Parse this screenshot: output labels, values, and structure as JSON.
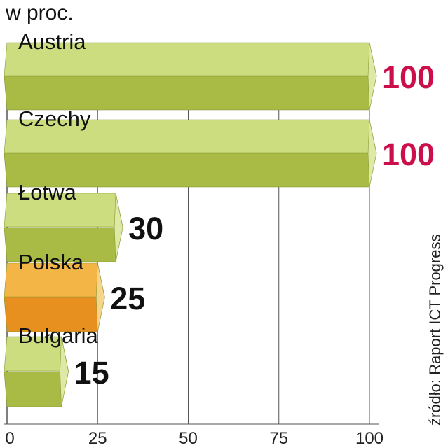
{
  "unit_label": "w proc.",
  "source": "źródło: Raport ICT Progress",
  "colors": {
    "bar_top": "#cbdd7f",
    "bar_front": "#a9bb45",
    "bar_end": "#dde9a4",
    "highlight_top": "#f4b547",
    "highlight_front": "#e8901f",
    "highlight_end": "#f8d489",
    "value_full": "#cc0f4a",
    "value_default": "#111111",
    "grid": "#555555"
  },
  "chart_data": {
    "type": "bar",
    "orientation": "horizontal",
    "categories": [
      "Austria",
      "Czechy",
      "Łotwa",
      "Polska",
      "Bułgaria"
    ],
    "values": [
      100,
      100,
      30,
      25,
      15
    ],
    "value_labels": [
      "100",
      "100",
      "30",
      "25",
      "15"
    ],
    "highlight": "Polska",
    "xlim": [
      0,
      100
    ],
    "xticks": [
      "0",
      "25",
      "50",
      "75",
      "100"
    ],
    "grid": true,
    "ylabel": "w proc."
  }
}
